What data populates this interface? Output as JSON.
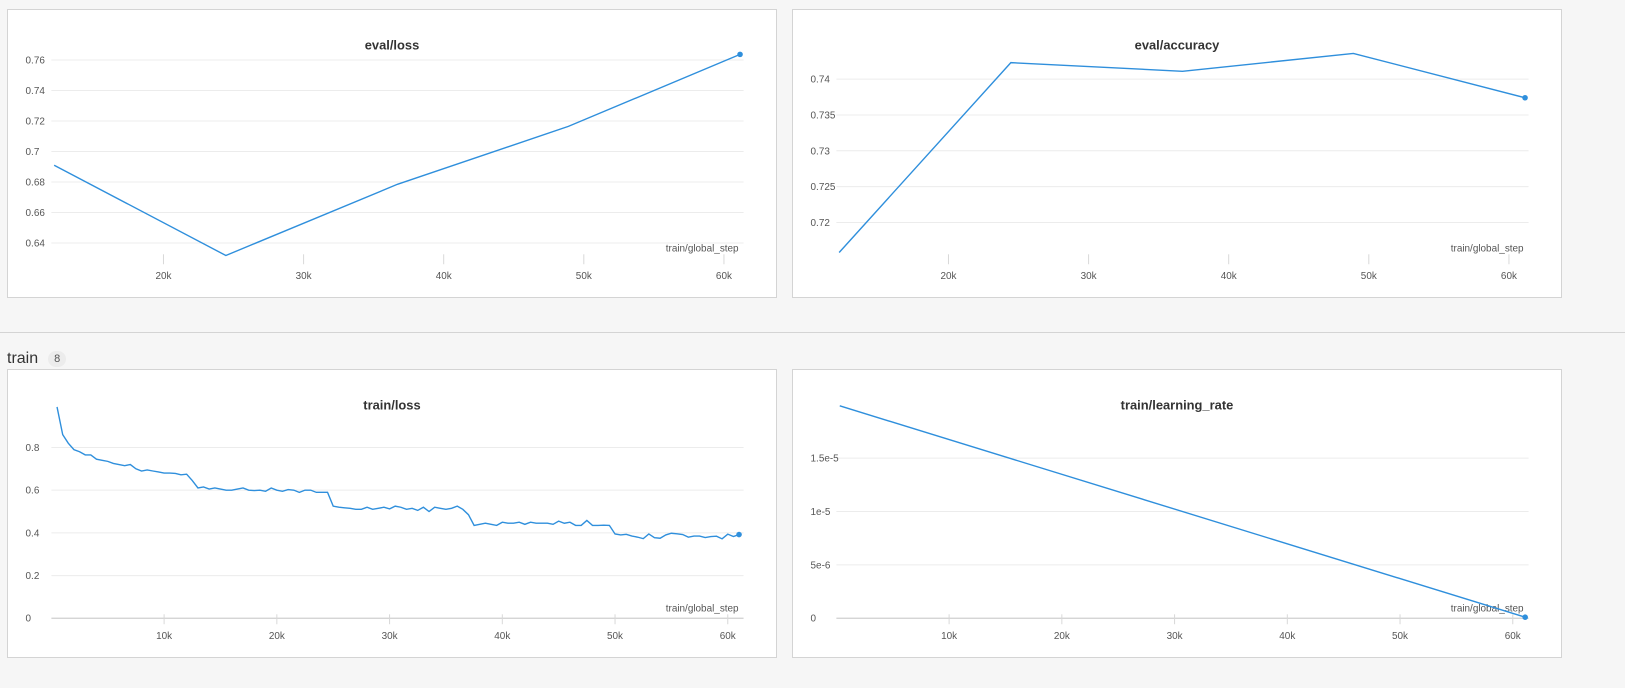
{
  "section": {
    "title": "train",
    "count": "8"
  },
  "colors": {
    "series": "#2f8fdc",
    "grid": "#ececec",
    "panel_border": "#d4d4d4"
  },
  "chart_data": [
    {
      "type": "line",
      "title": "eval/loss",
      "xlabel": "train/global_step",
      "xlim": [
        12000,
        61400
      ],
      "ylim": [
        0.63,
        0.77
      ],
      "xticks": [
        20000,
        30000,
        40000,
        50000,
        60000
      ],
      "xtick_labels": [
        "20k",
        "30k",
        "40k",
        "50k",
        "60k"
      ],
      "yticks": [
        0.64,
        0.66,
        0.68,
        0.7,
        0.72,
        0.74,
        0.76
      ],
      "ytick_labels": [
        "0.64",
        "0.66",
        "0.68",
        "0.7",
        "0.72",
        "0.74",
        "0.76"
      ],
      "show_zero_axis": false,
      "x": [
        12200,
        24450,
        36700,
        48900,
        61150
      ],
      "y": [
        0.691,
        0.6318,
        0.6785,
        0.7165,
        0.7637
      ]
    },
    {
      "type": "line",
      "title": "eval/accuracy",
      "xlabel": "train/global_step",
      "xlim": [
        12000,
        61400
      ],
      "ylim": [
        0.715,
        0.7448
      ],
      "xticks": [
        20000,
        30000,
        40000,
        50000,
        60000
      ],
      "xtick_labels": [
        "20k",
        "30k",
        "40k",
        "50k",
        "60k"
      ],
      "yticks": [
        0.72,
        0.725,
        0.73,
        0.735,
        0.74
      ],
      "ytick_labels": [
        "0.72",
        "0.725",
        "0.73",
        "0.735",
        "0.74"
      ],
      "show_zero_axis": false,
      "x": [
        12200,
        24450,
        36700,
        48900,
        61150
      ],
      "y": [
        0.7158,
        0.7423,
        0.7411,
        0.7436,
        0.7374
      ]
    },
    {
      "type": "line",
      "title": "train/loss",
      "xlabel": "train/global_step",
      "xlim": [
        0,
        61400
      ],
      "ylim": [
        0,
        1.0
      ],
      "xticks": [
        10000,
        20000,
        30000,
        40000,
        50000,
        60000
      ],
      "xtick_labels": [
        "10k",
        "20k",
        "30k",
        "40k",
        "50k",
        "60k"
      ],
      "yticks": [
        0,
        0.2,
        0.4,
        0.6,
        0.8
      ],
      "ytick_labels": [
        "0",
        "0.2",
        "0.4",
        "0.6",
        "0.8"
      ],
      "show_zero_axis": true,
      "x": [
        500,
        1000,
        1500,
        2000,
        2500,
        3000,
        3500,
        4000,
        4500,
        5000,
        5500,
        6000,
        6500,
        7000,
        7500,
        8000,
        8500,
        9000,
        9500,
        10000,
        10500,
        11000,
        11500,
        12000,
        12500,
        13000,
        13500,
        14000,
        14500,
        15000,
        15500,
        16000,
        16500,
        17000,
        17500,
        18000,
        18500,
        19000,
        19500,
        20000,
        20500,
        21000,
        21500,
        22000,
        22500,
        23000,
        23500,
        24000,
        24500,
        25000,
        25500,
        26000,
        26500,
        27000,
        27500,
        28000,
        28500,
        29000,
        29500,
        30000,
        30500,
        31000,
        31500,
        32000,
        32500,
        33000,
        33500,
        34000,
        34500,
        35000,
        35500,
        36000,
        36500,
        37000,
        37500,
        38000,
        38500,
        39000,
        39500,
        40000,
        40500,
        41000,
        41500,
        42000,
        42500,
        43000,
        43500,
        44000,
        44500,
        45000,
        45500,
        46000,
        46500,
        47000,
        47500,
        48000,
        48500,
        49000,
        49500,
        50000,
        50500,
        51000,
        51500,
        52000,
        52500,
        53000,
        53500,
        54000,
        54500,
        55000,
        55500,
        56000,
        56500,
        57000,
        57500,
        58000,
        58500,
        59000,
        59500,
        60000,
        60500,
        61000
      ],
      "y": [
        0.99,
        0.86,
        0.82,
        0.79,
        0.78,
        0.765,
        0.765,
        0.745,
        0.74,
        0.735,
        0.725,
        0.72,
        0.715,
        0.72,
        0.7,
        0.69,
        0.695,
        0.69,
        0.685,
        0.68,
        0.68,
        0.678,
        0.672,
        0.675,
        0.645,
        0.61,
        0.615,
        0.605,
        0.61,
        0.605,
        0.6,
        0.6,
        0.605,
        0.61,
        0.6,
        0.598,
        0.6,
        0.595,
        0.61,
        0.6,
        0.595,
        0.603,
        0.6,
        0.59,
        0.6,
        0.6,
        0.59,
        0.59,
        0.59,
        0.525,
        0.52,
        0.517,
        0.515,
        0.51,
        0.51,
        0.52,
        0.51,
        0.515,
        0.52,
        0.512,
        0.525,
        0.52,
        0.51,
        0.515,
        0.505,
        0.52,
        0.5,
        0.52,
        0.515,
        0.51,
        0.515,
        0.525,
        0.51,
        0.485,
        0.435,
        0.44,
        0.445,
        0.44,
        0.435,
        0.45,
        0.445,
        0.445,
        0.45,
        0.44,
        0.45,
        0.445,
        0.445,
        0.445,
        0.44,
        0.455,
        0.445,
        0.45,
        0.435,
        0.435,
        0.458,
        0.435,
        0.435,
        0.436,
        0.435,
        0.395,
        0.39,
        0.393,
        0.385,
        0.38,
        0.373,
        0.395,
        0.377,
        0.375,
        0.39,
        0.398,
        0.396,
        0.392,
        0.38,
        0.385,
        0.385,
        0.378,
        0.383,
        0.384,
        0.372,
        0.394,
        0.383,
        0.392
      ]
    },
    {
      "type": "line",
      "title": "train/learning_rate",
      "xlabel": "train/global_step",
      "xlim": [
        0,
        61400
      ],
      "ylim": [
        0,
        2e-05
      ],
      "xticks": [
        10000,
        20000,
        30000,
        40000,
        50000,
        60000
      ],
      "xtick_labels": [
        "10k",
        "20k",
        "30k",
        "40k",
        "50k",
        "60k"
      ],
      "yticks": [
        0,
        5e-06,
        1e-05,
        1.5e-05
      ],
      "ytick_labels": [
        "0",
        "5e-6",
        "1e-5",
        "1.5e-5"
      ],
      "show_zero_axis": true,
      "x": [
        300,
        61100
      ],
      "y": [
        1.99e-05,
        1e-07
      ]
    }
  ]
}
